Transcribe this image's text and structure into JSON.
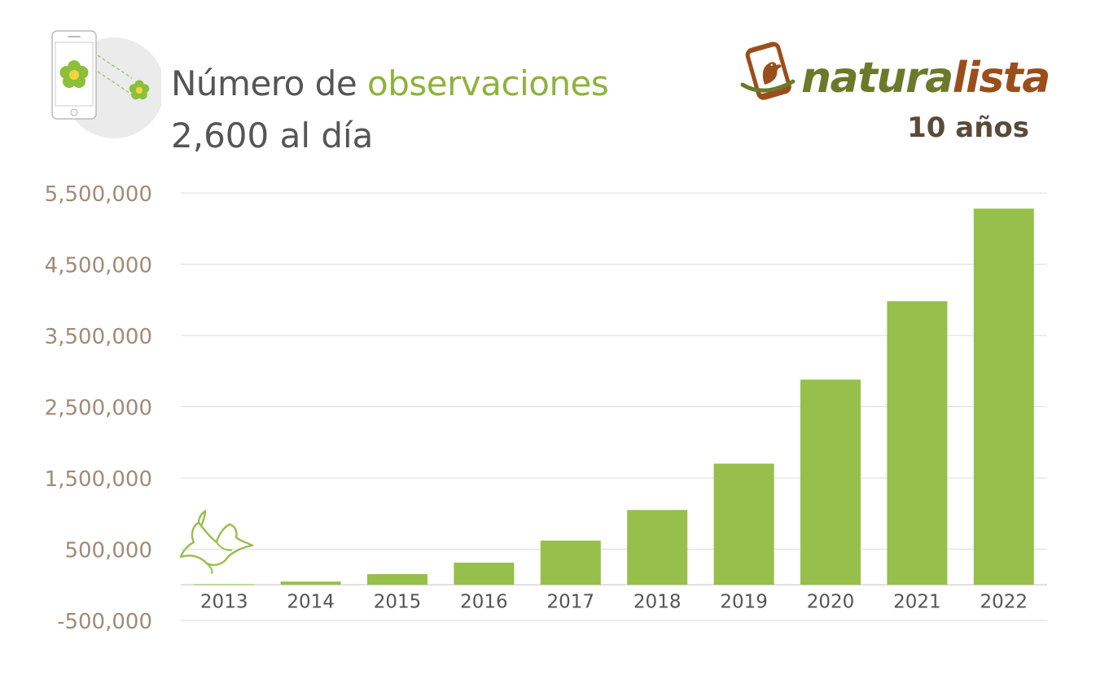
{
  "header": {
    "title_part1": "Número de",
    "title_part2": "observaciones",
    "subtitle": "2,600 al día"
  },
  "brand": {
    "name_part1": "natura",
    "name_part2": "lista",
    "tagline": "10 años"
  },
  "icons": [
    "phone-icon",
    "flower-icon",
    "bird-icon",
    "naturalista-logo-icon"
  ],
  "colors": {
    "bar": "#97bf4b",
    "axis_label": "#a08b78",
    "title_text": "#555555",
    "accent": "#8db33a",
    "brand_green": "#6b7a2a",
    "brand_brown": "#9a4e1c",
    "gridline": "#dddddd"
  },
  "chart_data": {
    "type": "bar",
    "title": "Número de observaciones",
    "categories": [
      "2013",
      "2014",
      "2015",
      "2016",
      "2017",
      "2018",
      "2019",
      "2020",
      "2021",
      "2022"
    ],
    "values": [
      8000,
      45000,
      150000,
      310000,
      620000,
      1050000,
      1700000,
      2880000,
      3980000,
      5280000
    ],
    "xlabel": "",
    "ylabel": "",
    "ylim": [
      -500000,
      5500000
    ],
    "ytick_values": [
      -500000,
      500000,
      1500000,
      2500000,
      3500000,
      4500000,
      5500000
    ],
    "ytick_labels": [
      "-500,000",
      "500,000",
      "1,500,000",
      "2,500,000",
      "3,500,000",
      "4,500,000",
      "5,500,000"
    ],
    "grid": true,
    "legend": "none"
  }
}
